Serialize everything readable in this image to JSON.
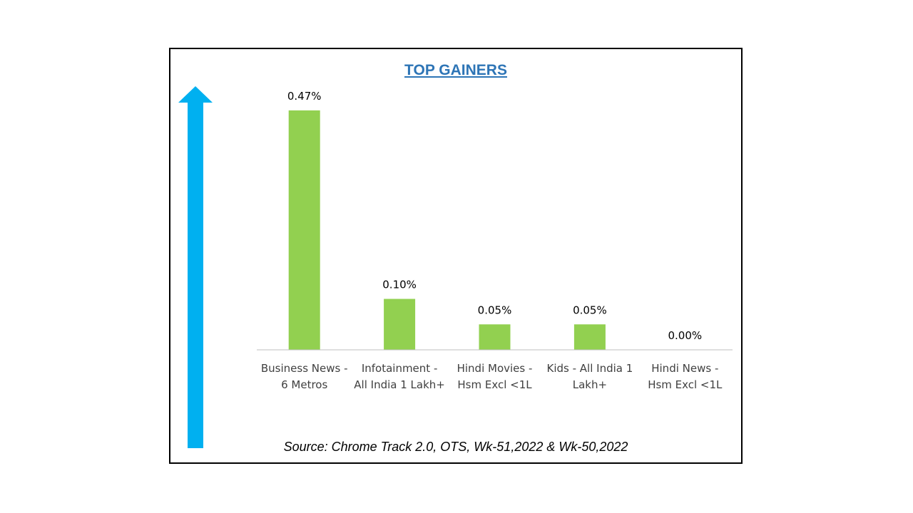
{
  "chart_data": {
    "type": "bar",
    "title": "TOP GAINERS",
    "categories": [
      [
        "Business News -",
        "6 Metros"
      ],
      [
        "Infotainment -",
        "All India 1 Lakh+"
      ],
      [
        "Hindi Movies -",
        "Hsm Excl <1L"
      ],
      [
        "Kids - All India 1",
        "Lakh+"
      ],
      [
        "Hindi News -",
        "Hsm Excl <1L"
      ]
    ],
    "values": [
      0.47,
      0.1,
      0.05,
      0.05,
      0.0
    ],
    "data_labels": [
      "0.47%",
      "0.10%",
      "0.05%",
      "0.05%",
      "0.00%"
    ],
    "unit": "%",
    "ylim": [
      0,
      0.5
    ],
    "grid": false,
    "legend": "none",
    "bar_color": "#92d050",
    "axis_color": "#bfbfbf",
    "title_color": "#2e75b6"
  },
  "decor": {
    "arrow_icon": "up-arrow-icon",
    "arrow_color": "#00b0f0"
  },
  "source": "Source: Chrome Track 2.0, OTS, Wk-51,2022 & Wk-50,2022"
}
